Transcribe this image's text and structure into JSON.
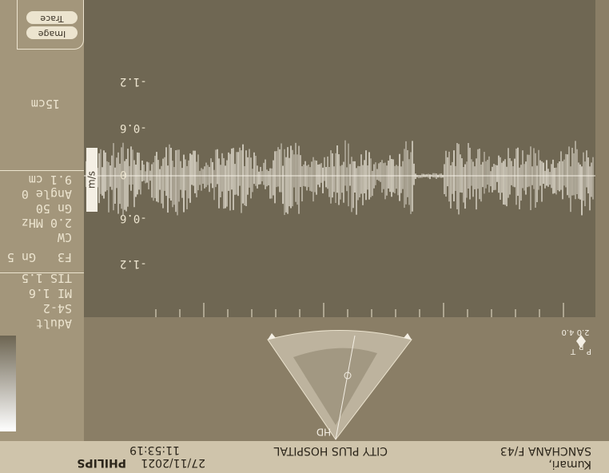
{
  "header": {
    "patient": "Kumari,",
    "name_line": "SANCHANA F/43",
    "hospital": "CITY PLUS HOSPITAL",
    "date": "27/11/2021",
    "time": "11:53:19",
    "brand": "PHILIPS"
  },
  "panel": {
    "probe_lines": [
      "Adult",
      "S4-2",
      "MI 1.6",
      "TIS 1.5"
    ],
    "mode_line": [
      "F3",
      "Gn 5"
    ],
    "doppler_lines": [
      "CW",
      "2.0 MHz",
      "Gn 50",
      "Angle 0",
      "9.1 cm"
    ],
    "depth": "15cm",
    "buttons": [
      "Image",
      "Trace"
    ]
  },
  "scale": {
    "unit": "m/s",
    "labels": [
      "-1.2",
      "-0.6",
      "0",
      "-0.6",
      "-1.2"
    ]
  },
  "probe": {
    "mark": "HD",
    "orientation": [
      "T",
      "R",
      "P"
    ],
    "depths": "2.0 4.0"
  }
}
